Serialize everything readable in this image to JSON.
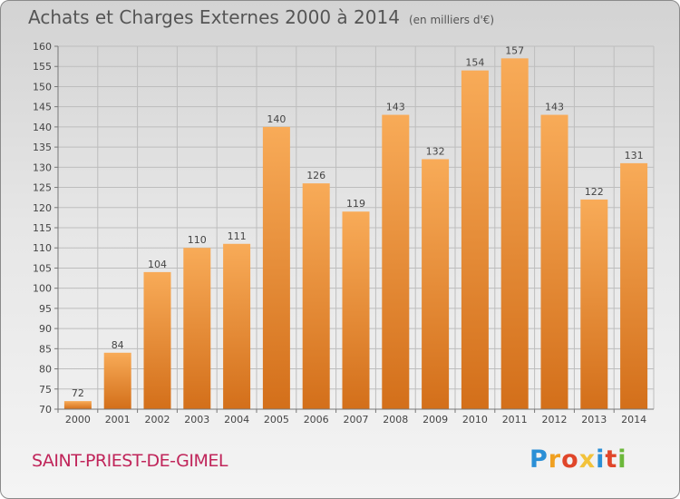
{
  "title": "Achats et Charges Externes 2000 à 2014",
  "unit": "(en milliers d'€)",
  "commune": "SAINT-PRIEST-DE-GIMEL",
  "logo": {
    "letters": [
      "P",
      "r",
      "o",
      "x",
      "i",
      "t",
      "i"
    ],
    "colors": [
      "#2a8fd6",
      "#f0a020",
      "#e0462a",
      "#f2c23a",
      "#2a8fd6",
      "#e0462a",
      "#6cb83a"
    ]
  },
  "colors": {
    "bar_top": "#f8ab58",
    "bar_bottom": "#d36f1a",
    "grid": "#bdbdbd",
    "axis": "#777777"
  },
  "chart_data": {
    "type": "bar",
    "categories": [
      "2000",
      "2001",
      "2002",
      "2003",
      "2004",
      "2005",
      "2006",
      "2007",
      "2008",
      "2009",
      "2010",
      "2011",
      "2012",
      "2013",
      "2014"
    ],
    "values": [
      72,
      84,
      104,
      110,
      111,
      140,
      126,
      119,
      143,
      132,
      154,
      157,
      143,
      122,
      131
    ],
    "title": "Achats et Charges Externes 2000 à 2014",
    "ylim": [
      70,
      160
    ],
    "yticks": [
      70,
      75,
      80,
      85,
      90,
      95,
      100,
      105,
      110,
      115,
      120,
      125,
      130,
      135,
      140,
      145,
      150,
      155,
      160
    ],
    "grid": true
  }
}
